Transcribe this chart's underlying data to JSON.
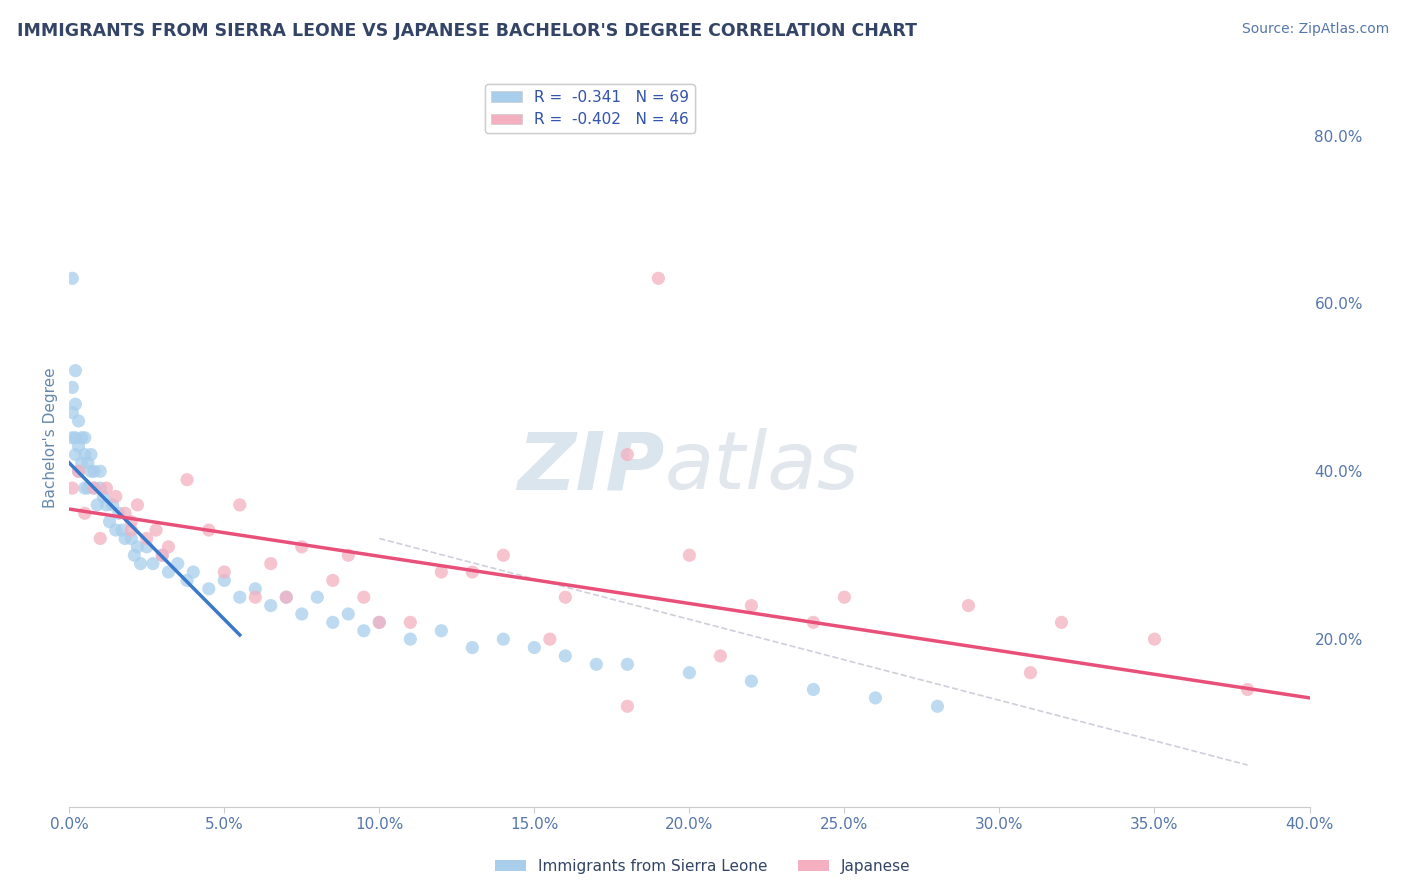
{
  "title": "IMMIGRANTS FROM SIERRA LEONE VS JAPANESE BACHELOR'S DEGREE CORRELATION CHART",
  "source": "Source: ZipAtlas.com",
  "ylabel": "Bachelor's Degree",
  "xlim": [
    0.0,
    0.4
  ],
  "ylim": [
    0.0,
    0.88
  ],
  "xticks": [
    0.0,
    0.05,
    0.1,
    0.15,
    0.2,
    0.25,
    0.3,
    0.35,
    0.4
  ],
  "yticks_right": [
    0.2,
    0.4,
    0.6,
    0.8
  ],
  "blue_color": "#A8CEEC",
  "pink_color": "#F4B0C0",
  "blue_line_color": "#3A78C9",
  "pink_line_color": "#E8507A",
  "dash_line_color": "#BBBBCC",
  "legend_blue_label": "R =  -0.341   N = 69",
  "legend_pink_label": "R =  -0.402   N = 46",
  "legend_bottom_blue": "Immigrants from Sierra Leone",
  "legend_bottom_pink": "Japanese",
  "watermark_zip": "ZIP",
  "watermark_atlas": "atlas",
  "blue_scatter_x": [
    0.001,
    0.001,
    0.001,
    0.001,
    0.002,
    0.002,
    0.002,
    0.002,
    0.003,
    0.003,
    0.003,
    0.004,
    0.004,
    0.005,
    0.005,
    0.005,
    0.006,
    0.006,
    0.007,
    0.007,
    0.008,
    0.008,
    0.009,
    0.01,
    0.01,
    0.011,
    0.012,
    0.013,
    0.014,
    0.015,
    0.016,
    0.017,
    0.018,
    0.02,
    0.021,
    0.022,
    0.023,
    0.025,
    0.027,
    0.03,
    0.032,
    0.035,
    0.038,
    0.04,
    0.045,
    0.05,
    0.055,
    0.06,
    0.065,
    0.07,
    0.075,
    0.08,
    0.085,
    0.09,
    0.095,
    0.1,
    0.11,
    0.12,
    0.13,
    0.14,
    0.15,
    0.16,
    0.17,
    0.18,
    0.2,
    0.22,
    0.24,
    0.26,
    0.28
  ],
  "blue_scatter_y": [
    0.63,
    0.5,
    0.47,
    0.44,
    0.52,
    0.48,
    0.44,
    0.42,
    0.46,
    0.43,
    0.4,
    0.44,
    0.41,
    0.44,
    0.42,
    0.38,
    0.41,
    0.38,
    0.42,
    0.4,
    0.38,
    0.4,
    0.36,
    0.4,
    0.38,
    0.37,
    0.36,
    0.34,
    0.36,
    0.33,
    0.35,
    0.33,
    0.32,
    0.32,
    0.3,
    0.31,
    0.29,
    0.31,
    0.29,
    0.3,
    0.28,
    0.29,
    0.27,
    0.28,
    0.26,
    0.27,
    0.25,
    0.26,
    0.24,
    0.25,
    0.23,
    0.25,
    0.22,
    0.23,
    0.21,
    0.22,
    0.2,
    0.21,
    0.19,
    0.2,
    0.19,
    0.18,
    0.17,
    0.17,
    0.16,
    0.15,
    0.14,
    0.13,
    0.12
  ],
  "pink_scatter_x": [
    0.001,
    0.003,
    0.005,
    0.008,
    0.01,
    0.012,
    0.015,
    0.018,
    0.02,
    0.022,
    0.025,
    0.028,
    0.032,
    0.038,
    0.045,
    0.055,
    0.065,
    0.075,
    0.085,
    0.095,
    0.11,
    0.13,
    0.155,
    0.18,
    0.21,
    0.25,
    0.29,
    0.32,
    0.35,
    0.38,
    0.06,
    0.09,
    0.12,
    0.16,
    0.2,
    0.24,
    0.02,
    0.03,
    0.05,
    0.07,
    0.1,
    0.14,
    0.18,
    0.22,
    0.31,
    0.19
  ],
  "pink_scatter_y": [
    0.38,
    0.4,
    0.35,
    0.38,
    0.32,
    0.38,
    0.37,
    0.35,
    0.34,
    0.36,
    0.32,
    0.33,
    0.31,
    0.39,
    0.33,
    0.36,
    0.29,
    0.31,
    0.27,
    0.25,
    0.22,
    0.28,
    0.2,
    0.42,
    0.18,
    0.25,
    0.24,
    0.22,
    0.2,
    0.14,
    0.25,
    0.3,
    0.28,
    0.25,
    0.3,
    0.22,
    0.33,
    0.3,
    0.28,
    0.25,
    0.22,
    0.3,
    0.12,
    0.24,
    0.16,
    0.63
  ],
  "blue_trend_x": [
    0.0,
    0.055
  ],
  "blue_trend_y": [
    0.41,
    0.205
  ],
  "pink_trend_x": [
    0.0,
    0.4
  ],
  "pink_trend_y": [
    0.355,
    0.13
  ],
  "dash_trend_x": [
    0.1,
    0.38
  ],
  "dash_trend_y": [
    0.32,
    0.05
  ]
}
